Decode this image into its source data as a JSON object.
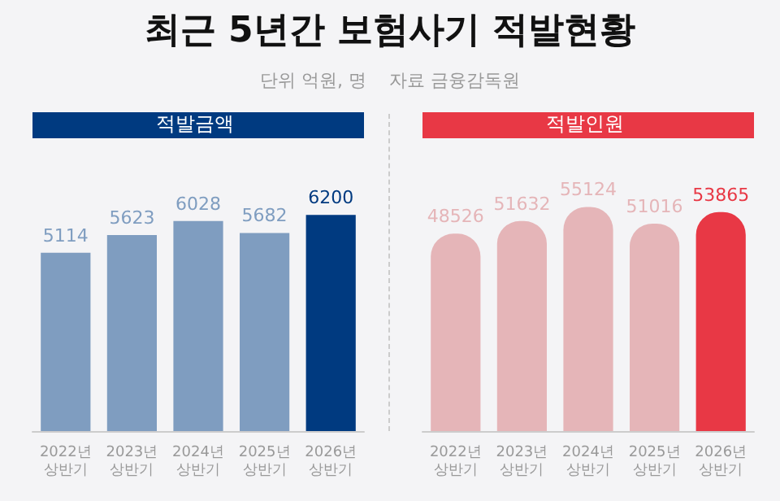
{
  "chart_data": [
    {
      "type": "other",
      "title": "최근 5년간 보험사기 적발현황",
      "subtitle": "단위 억원, 명",
      "annotations": [
        "자료 금융감독원"
      ]
    },
    {
      "type": "bar",
      "title": "적발금액",
      "categories": [
        "2022년\n상반기",
        "2023년\n상반기",
        "2024년\n상반기",
        "2025년\n상반기",
        "2026년\n상반기"
      ],
      "values": [
        5114,
        5623,
        6028,
        5682,
        6200
      ],
      "colors": [
        "#7f9dc0",
        "#7f9dc0",
        "#7f9dc0",
        "#7f9dc0",
        "#003a80"
      ],
      "data_labels": true,
      "tick_labels": "x"
    },
    {
      "type": "bar",
      "title": "적발인원",
      "categories": [
        "2022년\n상반기",
        "2023년\n상반기",
        "2024년\n상반기",
        "2025년\n상반기",
        "2026년\n상반기"
      ],
      "values": [
        48526,
        51632,
        55124,
        51016,
        53865
      ],
      "colors": [
        "#e5b5b8",
        "#e5b5b8",
        "#e5b5b8",
        "#e5b5b8",
        "#e83845"
      ],
      "data_labels": true,
      "tick_labels": "x"
    }
  ]
}
